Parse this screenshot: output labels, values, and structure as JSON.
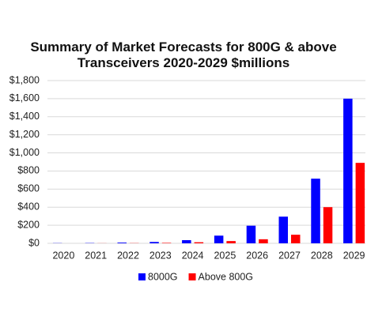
{
  "chart_data": {
    "type": "bar",
    "title": "Summary of Market Forecasts for 800G & above Transceivers 2020-2029 $millions",
    "categories": [
      "2020",
      "2021",
      "2022",
      "2023",
      "2024",
      "2025",
      "2026",
      "2027",
      "2028",
      "2029"
    ],
    "series": [
      {
        "name": "8000G",
        "color": "#0000ff",
        "values": [
          2,
          3,
          8,
          15,
          35,
          85,
          195,
          295,
          715,
          1600
        ]
      },
      {
        "name": "Above 800G",
        "color": "#ff0000",
        "values": [
          0,
          1,
          2,
          5,
          12,
          25,
          45,
          95,
          400,
          890
        ]
      }
    ],
    "ylim": [
      0,
      1800
    ],
    "yticks": [
      {
        "value": 0,
        "label": "$0"
      },
      {
        "value": 200,
        "label": "$200"
      },
      {
        "value": 400,
        "label": "$400"
      },
      {
        "value": 600,
        "label": "$600"
      },
      {
        "value": 800,
        "label": "$800"
      },
      {
        "value": 1000,
        "label": "$1,000"
      },
      {
        "value": 1200,
        "label": "$1,200"
      },
      {
        "value": 1400,
        "label": "$1,400"
      },
      {
        "value": 1600,
        "label": "$1,600"
      },
      {
        "value": 1800,
        "label": "$1,800"
      }
    ],
    "grid": true,
    "legend": "bottom"
  }
}
